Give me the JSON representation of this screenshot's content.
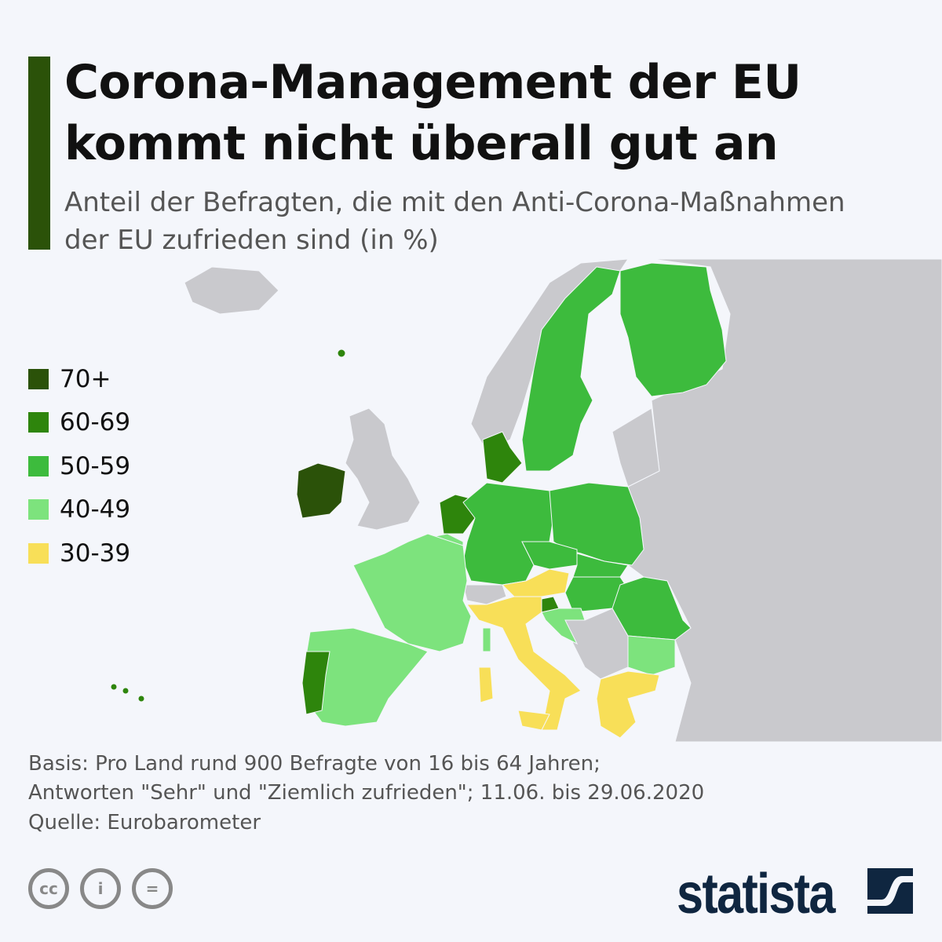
{
  "header": {
    "title_line1": "Corona-Management der EU",
    "title_line2": "kommt nicht überall gut an",
    "subtitle_line1": "Anteil der Befragten, die mit den Anti-Corona-Maßnahmen",
    "subtitle_line2": "der EU zufrieden sind (in %)"
  },
  "legend": [
    {
      "label": "70+",
      "color": "#2b5209"
    },
    {
      "label": "60-69",
      "color": "#2e850c"
    },
    {
      "label": "50-59",
      "color": "#3dbb3d"
    },
    {
      "label": "40-49",
      "color": "#7de37d"
    },
    {
      "label": "30-39",
      "color": "#f8df58"
    }
  ],
  "no_data_color": "#c9c9cd",
  "country_categories": {
    "IE": "70+",
    "DK": "60-69",
    "NL": "60-69",
    "PT": "60-69",
    "SI": "60-69",
    "SE": "50-59",
    "FI": "50-59",
    "DE": "50-59",
    "PL": "50-59",
    "CZ": "50-59",
    "SK": "50-59",
    "HU": "50-59",
    "RO": "50-59",
    "FR": "40-49",
    "ES": "40-49",
    "BE": "40-49",
    "HR": "40-49",
    "BG": "40-49",
    "IT": "30-39",
    "AT": "30-39",
    "GR": "30-39"
  },
  "footer": {
    "note_line1": "Basis: Pro Land rund 900 Befragte von 16 bis 64 Jahren;",
    "note_line2": "Antworten \"Sehr\" und \"Ziemlich zufrieden\"; 11.06. bis 29.06.2020",
    "source": "Quelle: Eurobarometer"
  },
  "license_icons": [
    "cc-icon",
    "attribution-icon",
    "no-derivatives-icon"
  ],
  "brand": {
    "logo": "statista"
  }
}
